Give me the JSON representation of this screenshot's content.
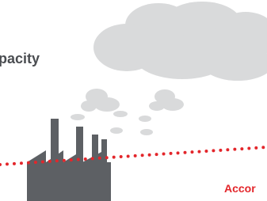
{
  "texts": {
    "heading_fragment": "pacity",
    "label_fragment": "Accor"
  }
}
